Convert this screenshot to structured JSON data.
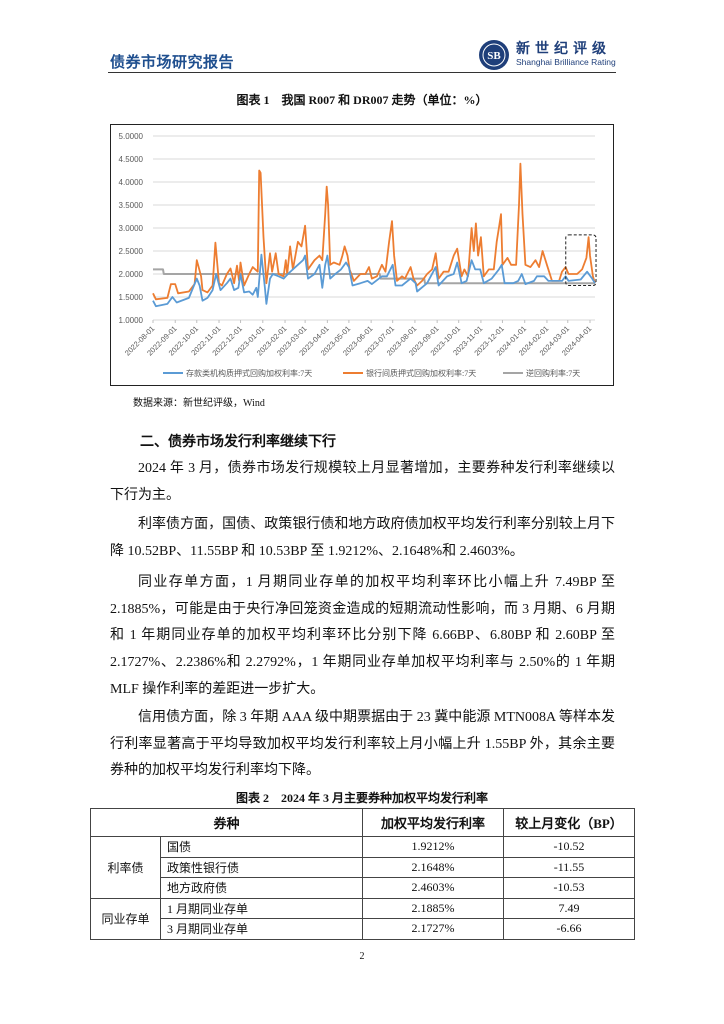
{
  "header": {
    "report_title": "债券市场研究报告",
    "logo_cn": "新世纪评级",
    "logo_en": "Shanghai Brilliance Rating",
    "logo_mark": "SB"
  },
  "figure1": {
    "caption": "图表 1　我国 R007 和 DR007 走势（单位：%）",
    "source": "数据来源：新世纪评级，Wind"
  },
  "chart_data": {
    "type": "line",
    "title": "",
    "xlabel": "",
    "ylabel": "",
    "ylim": [
      1.0,
      5.0
    ],
    "yticks": [
      "1.0000",
      "1.5000",
      "2.0000",
      "2.5000",
      "3.0000",
      "3.5000",
      "4.0000",
      "4.5000",
      "5.0000"
    ],
    "xticks": [
      "2022-08-01",
      "2022-09-01",
      "2022-10-01",
      "2022-11-01",
      "2022-12-01",
      "2023-01-01",
      "2023-02-01",
      "2023-03-01",
      "2023-04-01",
      "2023-05-01",
      "2023-06-01",
      "2023-07-01",
      "2023-08-01",
      "2023-09-01",
      "2023-10-01",
      "2023-11-01",
      "2023-12-01",
      "2024-01-01",
      "2024-02-01",
      "2024-03-01",
      "2024-04-01"
    ],
    "xlim": [
      "2022-08-01",
      "2024-04-08"
    ],
    "grid": "horizontal",
    "legend_position": "bottom",
    "highlight": {
      "style": "dashed-box",
      "x": [
        "2024-03-01",
        "2024-04-08"
      ],
      "y": [
        1.75,
        2.85
      ]
    },
    "series": [
      {
        "name": "存款类机构质押式回购加权利率:7天",
        "color": "#5b9bd5",
        "points": [
          [
            "2022-08-01",
            1.42
          ],
          [
            "2022-08-05",
            1.3
          ],
          [
            "2022-08-21",
            1.35
          ],
          [
            "2022-08-28",
            1.5
          ],
          [
            "2022-09-03",
            1.38
          ],
          [
            "2022-09-20",
            1.48
          ],
          [
            "2022-10-01",
            1.9
          ],
          [
            "2022-10-05",
            1.75
          ],
          [
            "2022-10-09",
            1.42
          ],
          [
            "2022-10-16",
            1.48
          ],
          [
            "2022-10-23",
            1.65
          ],
          [
            "2022-10-28",
            2.0
          ],
          [
            "2022-11-03",
            1.65
          ],
          [
            "2022-11-12",
            1.8
          ],
          [
            "2022-11-17",
            1.9
          ],
          [
            "2022-11-22",
            1.65
          ],
          [
            "2022-11-28",
            1.7
          ],
          [
            "2022-12-01",
            2.0
          ],
          [
            "2022-12-06",
            1.6
          ],
          [
            "2022-12-13",
            1.62
          ],
          [
            "2022-12-18",
            1.55
          ],
          [
            "2022-12-23",
            1.7
          ],
          [
            "2022-12-25",
            1.5
          ],
          [
            "2022-12-30",
            2.42
          ],
          [
            "2023-01-04",
            1.7
          ],
          [
            "2023-01-06",
            1.35
          ],
          [
            "2023-01-11",
            1.9
          ],
          [
            "2023-01-15",
            2.0
          ],
          [
            "2023-01-23",
            1.95
          ],
          [
            "2023-01-30",
            1.9
          ],
          [
            "2023-02-05",
            2.0
          ],
          [
            "2023-02-12",
            2.1
          ],
          [
            "2023-02-19",
            2.2
          ],
          [
            "2023-02-26",
            2.3
          ],
          [
            "2023-03-01",
            2.4
          ],
          [
            "2023-03-05",
            1.9
          ],
          [
            "2023-03-14",
            2.0
          ],
          [
            "2023-03-21",
            2.2
          ],
          [
            "2023-03-25",
            1.7
          ],
          [
            "2023-03-29",
            2.2
          ],
          [
            "2023-04-01",
            2.4
          ],
          [
            "2023-04-05",
            1.9
          ],
          [
            "2023-04-12",
            2.0
          ],
          [
            "2023-04-20",
            2.1
          ],
          [
            "2023-04-27",
            2.25
          ],
          [
            "2023-05-01",
            2.15
          ],
          [
            "2023-05-06",
            1.75
          ],
          [
            "2023-05-17",
            1.8
          ],
          [
            "2023-05-27",
            1.85
          ],
          [
            "2023-06-02",
            1.78
          ],
          [
            "2023-06-16",
            1.95
          ],
          [
            "2023-06-23",
            1.95
          ],
          [
            "2023-07-01",
            2.2
          ],
          [
            "2023-07-05",
            1.75
          ],
          [
            "2023-07-14",
            1.75
          ],
          [
            "2023-07-26",
            1.9
          ],
          [
            "2023-08-02",
            1.8
          ],
          [
            "2023-08-04",
            1.62
          ],
          [
            "2023-08-18",
            1.8
          ],
          [
            "2023-08-30",
            2.15
          ],
          [
            "2023-09-03",
            1.75
          ],
          [
            "2023-09-15",
            1.95
          ],
          [
            "2023-09-24",
            2.0
          ],
          [
            "2023-09-29",
            2.25
          ],
          [
            "2023-10-05",
            1.8
          ],
          [
            "2023-10-12",
            1.85
          ],
          [
            "2023-10-19",
            2.3
          ],
          [
            "2023-10-24",
            2.1
          ],
          [
            "2023-10-31",
            2.1
          ],
          [
            "2023-11-05",
            1.8
          ],
          [
            "2023-11-16",
            1.9
          ],
          [
            "2023-11-26",
            2.1
          ],
          [
            "2023-11-30",
            2.2
          ],
          [
            "2023-12-04",
            1.8
          ],
          [
            "2023-12-16",
            1.8
          ],
          [
            "2023-12-23",
            1.85
          ],
          [
            "2023-12-28",
            2.0
          ],
          [
            "2024-01-02",
            1.78
          ],
          [
            "2024-01-14",
            1.85
          ],
          [
            "2024-01-18",
            1.95
          ],
          [
            "2024-01-28",
            1.95
          ],
          [
            "2024-02-03",
            1.85
          ],
          [
            "2024-02-13",
            1.85
          ],
          [
            "2024-02-22",
            1.85
          ],
          [
            "2024-02-27",
            1.95
          ],
          [
            "2024-03-02",
            1.85
          ],
          [
            "2024-03-19",
            1.88
          ],
          [
            "2024-03-28",
            2.05
          ],
          [
            "2024-04-04",
            1.9
          ],
          [
            "2024-04-08",
            1.8
          ]
        ]
      },
      {
        "name": "银行间质押式回购加权利率:7天",
        "color": "#ed7d31",
        "points": [
          [
            "2022-08-01",
            1.58
          ],
          [
            "2022-08-05",
            1.45
          ],
          [
            "2022-08-21",
            1.48
          ],
          [
            "2022-08-26",
            1.78
          ],
          [
            "2022-09-01",
            1.78
          ],
          [
            "2022-09-05",
            1.58
          ],
          [
            "2022-09-20",
            1.62
          ],
          [
            "2022-09-28",
            1.78
          ],
          [
            "2022-10-01",
            2.3
          ],
          [
            "2022-10-07",
            1.95
          ],
          [
            "2022-10-09",
            1.65
          ],
          [
            "2022-10-16",
            1.6
          ],
          [
            "2022-10-23",
            1.75
          ],
          [
            "2022-10-27",
            2.68
          ],
          [
            "2022-11-01",
            1.8
          ],
          [
            "2022-11-05",
            1.75
          ],
          [
            "2022-11-12",
            2.0
          ],
          [
            "2022-11-17",
            2.12
          ],
          [
            "2022-11-22",
            1.8
          ],
          [
            "2022-11-26",
            2.18
          ],
          [
            "2022-11-29",
            1.85
          ],
          [
            "2022-12-01",
            2.25
          ],
          [
            "2022-12-06",
            1.75
          ],
          [
            "2022-12-13",
            2.0
          ],
          [
            "2022-12-18",
            2.15
          ],
          [
            "2022-12-25",
            2.05
          ],
          [
            "2022-12-27",
            4.25
          ],
          [
            "2022-12-29",
            4.2
          ],
          [
            "2023-01-02",
            2.8
          ],
          [
            "2023-01-06",
            1.8
          ],
          [
            "2023-01-11",
            2.45
          ],
          [
            "2023-01-14",
            2.05
          ],
          [
            "2023-01-19",
            2.45
          ],
          [
            "2023-01-23",
            2.0
          ],
          [
            "2023-01-30",
            1.95
          ],
          [
            "2023-02-02",
            2.3
          ],
          [
            "2023-02-04",
            2.0
          ],
          [
            "2023-02-08",
            2.6
          ],
          [
            "2023-02-12",
            2.1
          ],
          [
            "2023-02-19",
            2.7
          ],
          [
            "2023-02-24",
            2.6
          ],
          [
            "2023-03-01",
            3.05
          ],
          [
            "2023-03-05",
            2.1
          ],
          [
            "2023-03-14",
            2.3
          ],
          [
            "2023-03-21",
            2.4
          ],
          [
            "2023-03-25",
            2.3
          ],
          [
            "2023-03-29",
            3.3
          ],
          [
            "2023-03-31",
            3.9
          ],
          [
            "2023-04-02",
            3.5
          ],
          [
            "2023-04-05",
            2.2
          ],
          [
            "2023-04-10",
            2.25
          ],
          [
            "2023-04-18",
            2.2
          ],
          [
            "2023-04-22",
            2.4
          ],
          [
            "2023-04-25",
            2.6
          ],
          [
            "2023-04-29",
            2.4
          ],
          [
            "2023-05-02",
            2.1
          ],
          [
            "2023-05-08",
            1.85
          ],
          [
            "2023-05-17",
            2.0
          ],
          [
            "2023-05-24",
            2.0
          ],
          [
            "2023-05-29",
            2.15
          ],
          [
            "2023-06-02",
            1.9
          ],
          [
            "2023-06-09",
            1.95
          ],
          [
            "2023-06-16",
            2.2
          ],
          [
            "2023-06-21",
            2.05
          ],
          [
            "2023-06-26",
            2.7
          ],
          [
            "2023-06-30",
            3.15
          ],
          [
            "2023-07-03",
            2.4
          ],
          [
            "2023-07-07",
            1.85
          ],
          [
            "2023-07-14",
            1.95
          ],
          [
            "2023-07-18",
            1.9
          ],
          [
            "2023-07-26",
            2.15
          ],
          [
            "2023-07-30",
            1.9
          ],
          [
            "2023-08-04",
            1.75
          ],
          [
            "2023-08-11",
            1.85
          ],
          [
            "2023-08-18",
            2.0
          ],
          [
            "2023-08-25",
            2.1
          ],
          [
            "2023-08-30",
            2.45
          ],
          [
            "2023-09-03",
            1.9
          ],
          [
            "2023-09-10",
            2.05
          ],
          [
            "2023-09-17",
            2.05
          ],
          [
            "2023-09-24",
            2.4
          ],
          [
            "2023-09-29",
            2.55
          ],
          [
            "2023-10-05",
            1.95
          ],
          [
            "2023-10-09",
            2.1
          ],
          [
            "2023-10-14",
            1.95
          ],
          [
            "2023-10-19",
            3.0
          ],
          [
            "2023-10-22",
            2.5
          ],
          [
            "2023-10-25",
            3.1
          ],
          [
            "2023-10-28",
            2.4
          ],
          [
            "2023-11-01",
            2.8
          ],
          [
            "2023-11-05",
            1.95
          ],
          [
            "2023-11-12",
            2.1
          ],
          [
            "2023-11-19",
            2.1
          ],
          [
            "2023-11-23",
            2.7
          ],
          [
            "2023-11-26",
            3.0
          ],
          [
            "2023-11-29",
            3.3
          ],
          [
            "2023-12-01",
            2.2
          ],
          [
            "2023-12-08",
            2.35
          ],
          [
            "2023-12-13",
            2.2
          ],
          [
            "2023-12-20",
            2.2
          ],
          [
            "2023-12-24",
            3.5
          ],
          [
            "2023-12-26",
            4.4
          ],
          [
            "2023-12-29",
            3.3
          ],
          [
            "2024-01-02",
            2.2
          ],
          [
            "2024-01-09",
            2.15
          ],
          [
            "2024-01-16",
            2.3
          ],
          [
            "2024-01-21",
            2.15
          ],
          [
            "2024-01-26",
            2.5
          ],
          [
            "2024-02-01",
            2.2
          ],
          [
            "2024-02-08",
            1.85
          ],
          [
            "2024-02-18",
            1.85
          ],
          [
            "2024-02-22",
            2.05
          ],
          [
            "2024-02-27",
            2.15
          ],
          [
            "2024-03-02",
            2.0
          ],
          [
            "2024-03-14",
            2.0
          ],
          [
            "2024-03-21",
            2.1
          ],
          [
            "2024-03-27",
            2.35
          ],
          [
            "2024-03-30",
            2.8
          ],
          [
            "2024-04-01",
            2.4
          ],
          [
            "2024-04-05",
            1.95
          ],
          [
            "2024-04-08",
            1.8
          ]
        ]
      },
      {
        "name": "逆回购利率:7天",
        "color": "#a5a5a5",
        "points": [
          [
            "2022-08-01",
            2.1
          ],
          [
            "2022-08-15",
            2.1
          ],
          [
            "2022-08-16",
            2.0
          ],
          [
            "2023-06-13",
            2.0
          ],
          [
            "2023-06-14",
            1.9
          ],
          [
            "2023-08-14",
            1.9
          ],
          [
            "2023-08-15",
            1.8
          ],
          [
            "2024-04-08",
            1.8
          ]
        ]
      }
    ]
  },
  "section": {
    "heading": "二、债券市场发行利率继续下行"
  },
  "paragraphs": [
    "2024 年 3 月，债券市场发行规模较上月显著增加，主要券种发行利率继续以下行为主。",
    "利率债方面，国债、政策银行债和地方政府债加权平均发行利率分别较上月下降 10.52BP、11.55BP 和 10.53BP 至 1.9212%、2.1648%和 2.4603%。",
    "同业存单方面，1 月期同业存单的加权平均利率环比小幅上升 7.49BP 至 2.1885%，可能是由于央行净回笼资金造成的短期流动性影响，而 3 月期、6 月期和 1 年期同业存单的加权平均利率环比分别下降 6.66BP、6.80BP 和 2.60BP 至 2.1727%、2.2386%和 2.2792%，1 年期同业存单加权平均利率与 2.50%的 1 年期 MLF 操作利率的差距进一步扩大。",
    "信用债方面，除 3 年期 AAA 级中期票据由于 23 冀中能源 MTN008A 等样本发行利率显著高于平均导致加权平均发行利率较上月小幅上升 1.55BP 外，其余主要券种的加权平均发行利率均下降。"
  ],
  "table": {
    "caption": "图表 2　2024 年 3 月主要券种加权平均发行利率",
    "headers": [
      "券种",
      "加权平均发行利率",
      "较上月变化（BP）"
    ],
    "groups": [
      {
        "name": "利率债",
        "rows": [
          [
            "国债",
            "1.9212%",
            "-10.52"
          ],
          [
            "政策性银行债",
            "2.1648%",
            "-11.55"
          ],
          [
            "地方政府债",
            "2.4603%",
            "-10.53"
          ]
        ]
      },
      {
        "name": "同业存单",
        "rows": [
          [
            "1 月期同业存单",
            "2.1885%",
            "7.49"
          ],
          [
            "3 月期同业存单",
            "2.1727%",
            "-6.66"
          ]
        ]
      }
    ]
  },
  "page_number": "2",
  "colors": {
    "brand_blue": "#1f4f8f",
    "series_blue": "#5b9bd5",
    "series_orange": "#ed7d31",
    "series_gray": "#a5a5a5"
  }
}
